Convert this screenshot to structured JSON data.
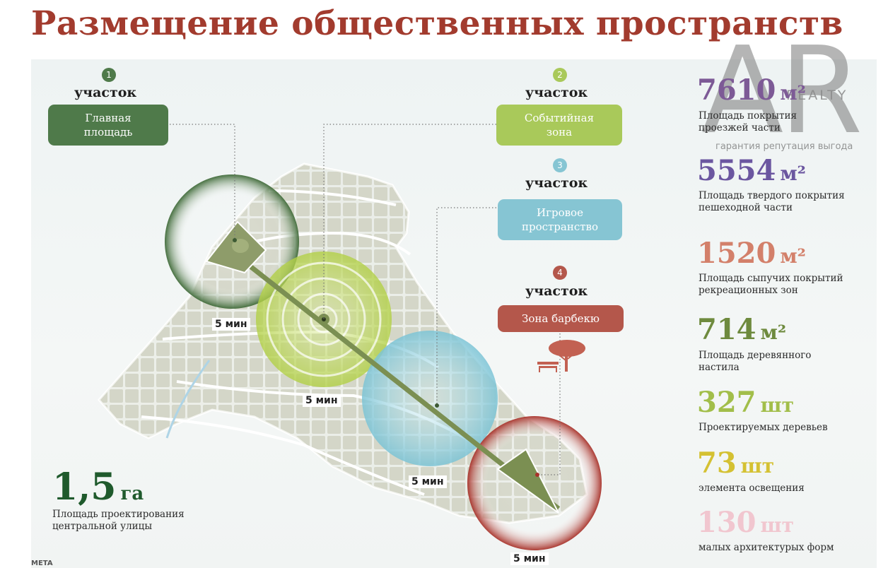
{
  "page": {
    "title": "Размещение общественных пространств"
  },
  "sites": [
    {
      "number": "1",
      "label": "участок",
      "zone": "Главная площадь",
      "walk_time": "5 мин",
      "color": "#4f7a4a"
    },
    {
      "number": "2",
      "label": "участок",
      "zone": "Событийная зона",
      "walk_time": "5 мин",
      "color": "#a9c95a"
    },
    {
      "number": "3",
      "label": "участок",
      "zone": "Игровое пространство",
      "walk_time": "5 мин",
      "color": "#86c5d3"
    },
    {
      "number": "4",
      "label": "участок",
      "zone": "Зона барбекю",
      "walk_time": "5 мин",
      "color": "#b4574b"
    }
  ],
  "stats": [
    {
      "value": "7610",
      "unit": "м²",
      "desc": "Площадь покрытия проезжей части",
      "color": "#7d5a96"
    },
    {
      "value": "5554",
      "unit": "м²",
      "desc": "Площадь твердого покрытия пешеходной части",
      "color": "#6b56a0"
    },
    {
      "value": "1520",
      "unit": "м²",
      "desc": "Площадь сыпучих покрытий рекреационных зон",
      "color": "#d3806a"
    },
    {
      "value": "714",
      "unit": "м²",
      "desc": "Площадь деревянного настила",
      "color": "#6e8a3e"
    },
    {
      "value": "327",
      "unit": "шт",
      "desc": "Проектируемых деревьев",
      "color": "#a2be4a"
    },
    {
      "value": "73",
      "unit": "шт",
      "desc": "элемента освещения",
      "color": "#d4c132"
    },
    {
      "value": "130",
      "unit": "шт",
      "desc": "малых архитектурых форм",
      "color": "#f1c6cf"
    }
  ],
  "area": {
    "value": "1,5",
    "unit": "га",
    "desc": "Площадь проектирования центральной улицы"
  },
  "logo": {
    "letters": "AR",
    "word": "REALTY",
    "tagline": "гарантия репутация выгода"
  },
  "footer": {
    "mark": "META"
  }
}
